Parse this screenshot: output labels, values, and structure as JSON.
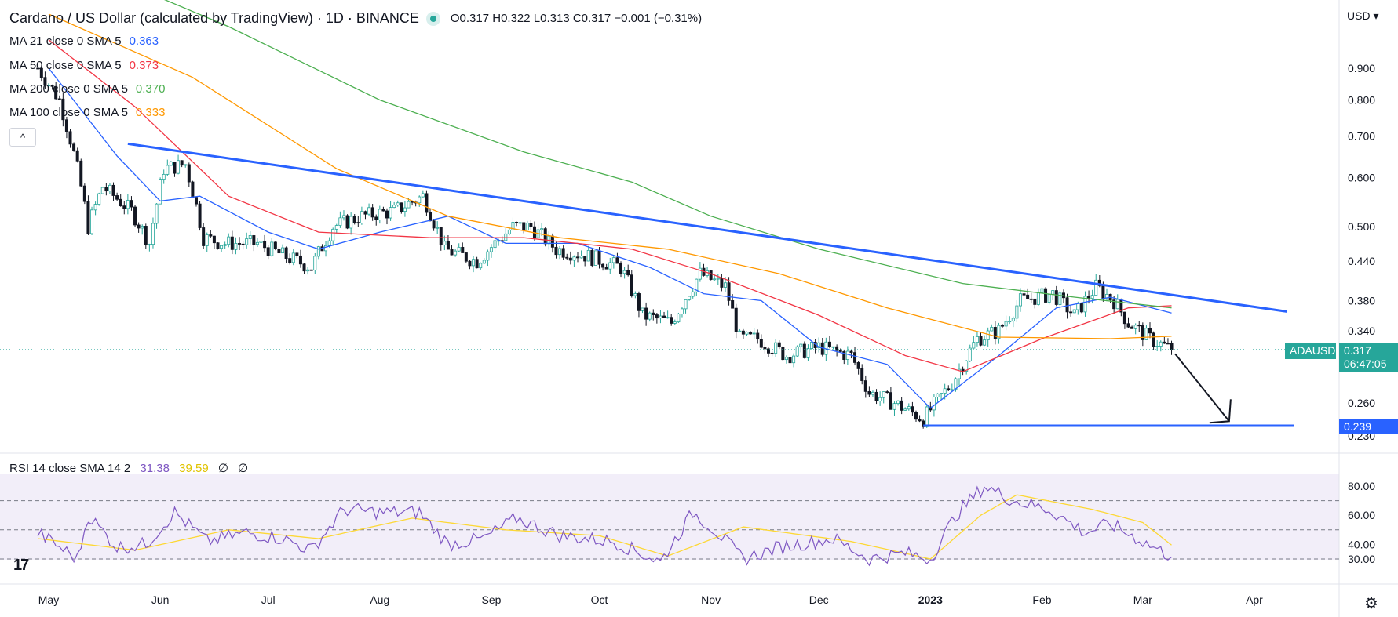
{
  "header": {
    "title": "Cardano / US Dollar (calculated by TradingView) · 1D · BINANCE",
    "ohlc": "O0.317 H0.322 L0.313 C0.317 −0.001 (−0.31%)"
  },
  "currency": "USD",
  "currency_caret": "▾",
  "indicators": [
    {
      "label": "MA 21 close 0 SMA 5",
      "value": "0.363",
      "color": "#2962ff"
    },
    {
      "label": "MA 50 close 0 SMA 5",
      "value": "0.373",
      "color": "#f23645"
    },
    {
      "label": "MA 200 close 0 SMA 5",
      "value": "0.370",
      "color": "#4caf50"
    },
    {
      "label": "MA 100 close 0 SMA 5",
      "value": "0.333",
      "color": "#ff9800"
    }
  ],
  "collapse_icon": "^",
  "rsi_legend": {
    "label": "RSI 14 close SMA 14 2",
    "value": "31.38",
    "sma_value": "39.59",
    "extra1": "∅",
    "extra2": "∅"
  },
  "price_tag": {
    "symbol": "ADAUSD",
    "price": "0.317",
    "countdown": "06:47:05"
  },
  "level_tag": "0.239",
  "tv_logo": "17",
  "settings_icon": "⚙",
  "colors": {
    "up": "#26a69a",
    "down": "#131722",
    "trendline": "#2962ff",
    "rsi": "#7e57c2",
    "rsi_sma": "#fdd835",
    "tag": "#26a69a"
  },
  "chart_data": {
    "type": "candlestick",
    "scale": "log",
    "y_ticks": [
      "0.900",
      "0.800",
      "0.700",
      "0.600",
      "0.500",
      "0.440",
      "0.380",
      "0.340",
      "0.260",
      "0.230"
    ],
    "x_ticks": [
      "May",
      "Jun",
      "Jul",
      "Aug",
      "Sep",
      "Oct",
      "Nov",
      "Dec",
      "2023",
      "Feb",
      "Mar",
      "Apr"
    ],
    "x_tick_dates": [
      "2022-05-01",
      "2022-06-01",
      "2022-07-01",
      "2022-08-01",
      "2022-09-01",
      "2022-10-01",
      "2022-11-01",
      "2022-12-01",
      "2023-01-01",
      "2023-02-01",
      "2023-03-01",
      "2023-04-01"
    ],
    "ohlc_anchors": [
      [
        "2022-04-28",
        0.9
      ],
      [
        "2022-05-04",
        0.8
      ],
      [
        "2022-05-09",
        0.62
      ],
      [
        "2022-05-12",
        0.5
      ],
      [
        "2022-05-16",
        0.58
      ],
      [
        "2022-05-24",
        0.53
      ],
      [
        "2022-05-29",
        0.47
      ],
      [
        "2022-06-02",
        0.62
      ],
      [
        "2022-06-08",
        0.63
      ],
      [
        "2022-06-13",
        0.48
      ],
      [
        "2022-06-19",
        0.47
      ],
      [
        "2022-06-28",
        0.47
      ],
      [
        "2022-07-05",
        0.45
      ],
      [
        "2022-07-13",
        0.43
      ],
      [
        "2022-07-19",
        0.5
      ],
      [
        "2022-07-27",
        0.52
      ],
      [
        "2022-08-05",
        0.53
      ],
      [
        "2022-08-13",
        0.56
      ],
      [
        "2022-08-19",
        0.46
      ],
      [
        "2022-08-28",
        0.44
      ],
      [
        "2022-09-07",
        0.5
      ],
      [
        "2022-09-12",
        0.5
      ],
      [
        "2022-09-19",
        0.46
      ],
      [
        "2022-09-27",
        0.45
      ],
      [
        "2022-10-07",
        0.43
      ],
      [
        "2022-10-13",
        0.36
      ],
      [
        "2022-10-21",
        0.35
      ],
      [
        "2022-10-29",
        0.42
      ],
      [
        "2022-11-05",
        0.4
      ],
      [
        "2022-11-09",
        0.33
      ],
      [
        "2022-11-14",
        0.33
      ],
      [
        "2022-11-22",
        0.31
      ],
      [
        "2022-12-01",
        0.32
      ],
      [
        "2022-12-10",
        0.31
      ],
      [
        "2022-12-15",
        0.27
      ],
      [
        "2022-12-22",
        0.26
      ],
      [
        "2022-12-30",
        0.245
      ],
      [
        "2023-01-07",
        0.28
      ],
      [
        "2023-01-14",
        0.33
      ],
      [
        "2023-01-20",
        0.34
      ],
      [
        "2023-01-26",
        0.38
      ],
      [
        "2023-02-04",
        0.39
      ],
      [
        "2023-02-10",
        0.36
      ],
      [
        "2023-02-16",
        0.4
      ],
      [
        "2023-02-21",
        0.38
      ],
      [
        "2023-02-25",
        0.35
      ],
      [
        "2023-03-03",
        0.33
      ],
      [
        "2023-03-09",
        0.317
      ]
    ],
    "ma": [
      {
        "name": "MA 21",
        "points": [
          [
            "2022-05-01",
            0.9
          ],
          [
            "2022-05-20",
            0.65
          ],
          [
            "2022-06-01",
            0.55
          ],
          [
            "2022-06-12",
            0.56
          ],
          [
            "2022-07-01",
            0.49
          ],
          [
            "2022-07-15",
            0.46
          ],
          [
            "2022-08-01",
            0.49
          ],
          [
            "2022-08-20",
            0.52
          ],
          [
            "2022-09-05",
            0.47
          ],
          [
            "2022-09-25",
            0.47
          ],
          [
            "2022-10-15",
            0.43
          ],
          [
            "2022-10-30",
            0.39
          ],
          [
            "2022-11-15",
            0.38
          ],
          [
            "2022-12-01",
            0.32
          ],
          [
            "2022-12-20",
            0.3
          ],
          [
            "2023-01-01",
            0.255
          ],
          [
            "2023-01-20",
            0.31
          ],
          [
            "2023-02-05",
            0.37
          ],
          [
            "2023-02-20",
            0.385
          ],
          [
            "2023-03-09",
            0.363
          ]
        ]
      },
      {
        "name": "MA 50",
        "points": [
          [
            "2022-05-01",
            1.0
          ],
          [
            "2022-05-25",
            0.78
          ],
          [
            "2022-06-20",
            0.56
          ],
          [
            "2022-07-15",
            0.49
          ],
          [
            "2022-08-15",
            0.48
          ],
          [
            "2022-09-10",
            0.48
          ],
          [
            "2022-10-10",
            0.46
          ],
          [
            "2022-11-01",
            0.42
          ],
          [
            "2022-12-01",
            0.36
          ],
          [
            "2022-12-25",
            0.31
          ],
          [
            "2023-01-10",
            0.292
          ],
          [
            "2023-02-01",
            0.33
          ],
          [
            "2023-02-25",
            0.37
          ],
          [
            "2023-03-09",
            0.373
          ]
        ]
      },
      {
        "name": "MA 100",
        "points": [
          [
            "2022-05-01",
            1.1
          ],
          [
            "2022-06-10",
            0.87
          ],
          [
            "2022-07-20",
            0.62
          ],
          [
            "2022-08-20",
            0.52
          ],
          [
            "2022-09-20",
            0.48
          ],
          [
            "2022-10-20",
            0.46
          ],
          [
            "2022-11-20",
            0.42
          ],
          [
            "2022-12-20",
            0.37
          ],
          [
            "2023-01-20",
            0.332
          ],
          [
            "2023-02-20",
            0.33
          ],
          [
            "2023-03-09",
            0.333
          ]
        ]
      },
      {
        "name": "MA 200",
        "points": [
          [
            "2022-05-20",
            1.25
          ],
          [
            "2022-06-20",
            1.05
          ],
          [
            "2022-08-01",
            0.8
          ],
          [
            "2022-09-10",
            0.66
          ],
          [
            "2022-10-10",
            0.59
          ],
          [
            "2022-11-01",
            0.52
          ],
          [
            "2022-12-01",
            0.46
          ],
          [
            "2023-01-10",
            0.405
          ],
          [
            "2023-02-10",
            0.385
          ],
          [
            "2023-03-09",
            0.37
          ]
        ]
      }
    ],
    "trendlines": [
      {
        "from": [
          "2022-05-23",
          0.68
        ],
        "to": [
          "2023-04-10",
          0.365
        ]
      },
      {
        "from": [
          "2022-12-30",
          0.239
        ],
        "to": [
          "2023-04-12",
          0.239
        ]
      }
    ],
    "projection_arrow": {
      "from": [
        "2023-03-10",
        0.312
      ],
      "to": [
        "2023-03-25",
        0.243
      ]
    },
    "current_price": 0.317,
    "rsi": {
      "y_ticks": [
        "80.00",
        "60.00",
        "40.00",
        "30.00"
      ],
      "band": [
        30,
        70
      ],
      "mid": 50,
      "anchors": [
        [
          "2022-04-28",
          48
        ],
        [
          "2022-05-09",
          30
        ],
        [
          "2022-05-12",
          60
        ],
        [
          "2022-05-20",
          38
        ],
        [
          "2022-05-28",
          40
        ],
        [
          "2022-06-05",
          62
        ],
        [
          "2022-06-14",
          42
        ],
        [
          "2022-06-25",
          48
        ],
        [
          "2022-07-05",
          44
        ],
        [
          "2022-07-13",
          36
        ],
        [
          "2022-07-22",
          64
        ],
        [
          "2022-08-01",
          62
        ],
        [
          "2022-08-12",
          62
        ],
        [
          "2022-08-20",
          40
        ],
        [
          "2022-08-30",
          44
        ],
        [
          "2022-09-08",
          58
        ],
        [
          "2022-09-20",
          46
        ],
        [
          "2022-10-05",
          42
        ],
        [
          "2022-10-18",
          28
        ],
        [
          "2022-10-27",
          62
        ],
        [
          "2022-11-02",
          50
        ],
        [
          "2022-11-10",
          30
        ],
        [
          "2022-11-20",
          38
        ],
        [
          "2022-12-05",
          44
        ],
        [
          "2022-12-15",
          30
        ],
        [
          "2022-12-25",
          34
        ],
        [
          "2023-01-01",
          30
        ],
        [
          "2023-01-08",
          60
        ],
        [
          "2023-01-16",
          80
        ],
        [
          "2023-01-24",
          70
        ],
        [
          "2023-02-03",
          64
        ],
        [
          "2023-02-13",
          48
        ],
        [
          "2023-02-20",
          54
        ],
        [
          "2023-03-01",
          42
        ],
        [
          "2023-03-09",
          31.38
        ]
      ],
      "sma_anchors": [
        [
          "2022-04-28",
          44
        ],
        [
          "2022-05-25",
          36
        ],
        [
          "2022-06-20",
          50
        ],
        [
          "2022-07-15",
          44
        ],
        [
          "2022-08-10",
          58
        ],
        [
          "2022-09-05",
          50
        ],
        [
          "2022-10-01",
          46
        ],
        [
          "2022-10-20",
          32
        ],
        [
          "2022-11-10",
          52
        ],
        [
          "2022-12-10",
          42
        ],
        [
          "2023-01-01",
          30
        ],
        [
          "2023-01-15",
          60
        ],
        [
          "2023-01-25",
          74
        ],
        [
          "2023-02-15",
          64
        ],
        [
          "2023-03-01",
          55
        ],
        [
          "2023-03-09",
          39.59
        ]
      ]
    }
  }
}
